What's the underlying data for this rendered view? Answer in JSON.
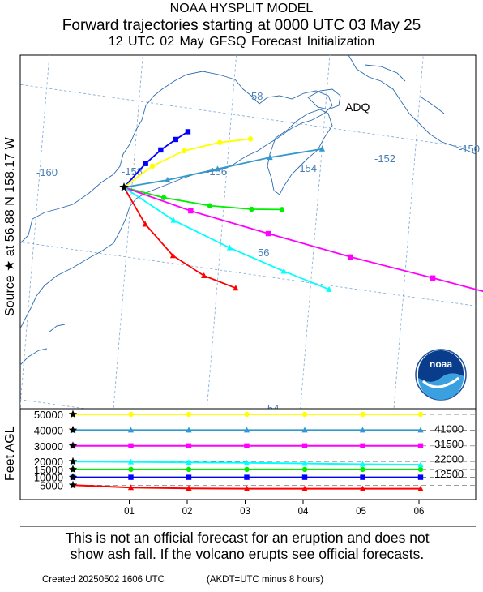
{
  "header": {
    "line1": "NOAA HYSPLIT MODEL",
    "line2": "Forward trajectories starting at 0000 UTC 03 May 25",
    "line3": "12 UTC 02 May    GFSQ  Forecast Initialization"
  },
  "side_label": "Source ★ at   56.88 N  158.17 W",
  "y_unit_label": "Feet AGL",
  "map": {
    "place_label": "ADQ",
    "lon_labels": [
      "-160",
      "-158",
      "-156",
      "-154",
      "-152",
      "-150"
    ],
    "lat_labels": [
      "58",
      "56",
      "54"
    ],
    "logo_text": "noaa"
  },
  "footer": {
    "disclaimer_line1": "This is not an official forecast for an eruption and does not",
    "disclaimer_line2": "show ash fall. If the volcano erupts see official forecasts.",
    "created": "Created 20250502 1606 UTC",
    "timezone_note": "(AKDT=UTC minus 8 hours)"
  },
  "chart_data": {
    "type": "line",
    "title": "Forward trajectories starting at 0000 UTC 03 May 25",
    "source": {
      "lat": 56.88,
      "lon": -158.17
    },
    "x_ticks": [
      "01",
      "02",
      "03",
      "04",
      "05",
      "06"
    ],
    "y_ticks": [
      5000,
      10000,
      15000,
      20000,
      30000,
      40000,
      50000
    ],
    "right_labels": [
      "41000",
      "31500",
      "22000",
      "12500"
    ],
    "ylabel": "Feet AGL",
    "series": [
      {
        "color": "#0000ff",
        "marker": "square",
        "start_ft": 10000,
        "track": [
          [
            -158.17,
            56.88
          ],
          [
            -157.75,
            57.22
          ],
          [
            -157.45,
            57.42
          ],
          [
            -157.15,
            57.58
          ],
          [
            -156.9,
            57.7
          ]
        ],
        "height": [
          10000,
          10000,
          10000,
          10000,
          10000,
          10000,
          10000
        ]
      },
      {
        "color": "#ffff00",
        "marker": "circle",
        "start_ft": 50000,
        "track": [
          [
            -158.17,
            56.88
          ],
          [
            -157.6,
            57.2
          ],
          [
            -156.95,
            57.45
          ],
          [
            -156.2,
            57.62
          ],
          [
            -155.55,
            57.72
          ]
        ],
        "height": [
          50000,
          50000,
          50000,
          50000,
          50000,
          50000,
          50000
        ]
      },
      {
        "color": "#3399cc",
        "marker": "triangle",
        "start_ft": 40000,
        "track": [
          [
            -158.17,
            56.88
          ],
          [
            -157.25,
            57.05
          ],
          [
            -156.2,
            57.28
          ],
          [
            -155.1,
            57.52
          ],
          [
            -154.0,
            57.72
          ]
        ],
        "height": [
          40000,
          40000,
          40000,
          40000,
          40000,
          40000,
          40000
        ]
      },
      {
        "color": "#00ee00",
        "marker": "circle",
        "start_ft": 15000,
        "track": [
          [
            -158.17,
            56.88
          ],
          [
            -157.3,
            56.82
          ],
          [
            -156.3,
            56.8
          ],
          [
            -155.4,
            56.83
          ],
          [
            -154.75,
            56.88
          ]
        ],
        "height": [
          15000,
          15000,
          15000,
          15000,
          15000,
          15000,
          15000
        ]
      },
      {
        "color": "#ff00ff",
        "marker": "square",
        "start_ft": 30000,
        "track": [
          [
            -158.17,
            56.88
          ],
          [
            -156.7,
            56.7
          ],
          [
            -155.0,
            56.55
          ],
          [
            -153.2,
            56.4
          ],
          [
            -151.4,
            56.28
          ],
          [
            -149.6,
            56.15
          ]
        ],
        "height": [
          30000,
          30000,
          30000,
          30000,
          30000,
          30000,
          30000
        ]
      },
      {
        "color": "#00ffff",
        "marker": "triangle",
        "start_ft": 20000,
        "track": [
          [
            -158.17,
            56.88
          ],
          [
            -157.05,
            56.55
          ],
          [
            -155.8,
            56.3
          ],
          [
            -154.6,
            56.1
          ],
          [
            -153.6,
            55.95
          ]
        ],
        "height": [
          20000,
          19800,
          19500,
          19200,
          18800,
          18300,
          18000
        ]
      },
      {
        "color": "#ff0000",
        "marker": "triangle",
        "start_ft": 5000,
        "track": [
          [
            -158.17,
            56.88
          ],
          [
            -157.65,
            56.45
          ],
          [
            -157.0,
            56.1
          ],
          [
            -156.3,
            55.9
          ],
          [
            -155.6,
            55.8
          ]
        ],
        "height": [
          5000,
          3500,
          3000,
          2800,
          2800,
          2800,
          2800
        ]
      }
    ]
  }
}
